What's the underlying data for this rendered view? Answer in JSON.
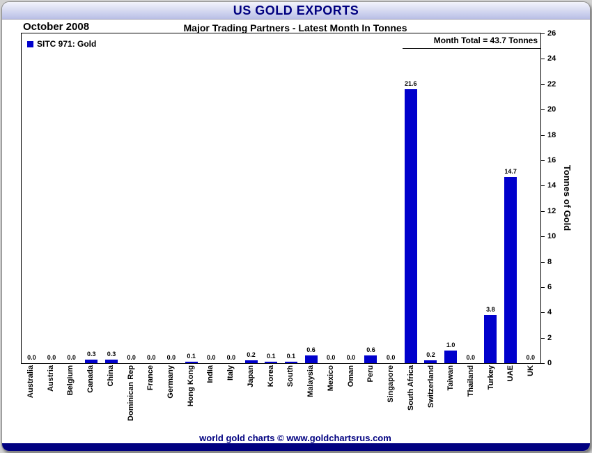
{
  "window": {
    "title": "US GOLD EXPORTS"
  },
  "header": {
    "date": "October 2008",
    "subtitle": "Major Trading Partners - Latest Month In Tonnes"
  },
  "legend": {
    "label": "SITC 971: Gold"
  },
  "month_total": {
    "label": "Month Total = 43.7 Tonnes"
  },
  "footer": {
    "text": "world gold charts © www.goldchartsrus.com"
  },
  "colors": {
    "bar": "#0000CC",
    "accent": "#000080",
    "titlebar_top": "#F3F4FC",
    "titlebar_bottom": "#B9BFE6"
  },
  "chart_data": {
    "type": "bar",
    "title": "US GOLD EXPORTS",
    "subtitle": "Major Trading Partners - Latest Month In Tonnes",
    "legend_entries": [
      "SITC 971: Gold"
    ],
    "legend_position": "top-left",
    "annotations": [
      "Month Total = 43.7 Tonnes"
    ],
    "categories": [
      "Australia",
      "Austria",
      "Belgium",
      "Canada",
      "China",
      "Dominican Rep",
      "France",
      "Germany",
      "Hong Kong",
      "India",
      "Italy",
      "Japan",
      "Korea",
      "South",
      "Malaysia",
      "Mexico",
      "Oman",
      "Peru",
      "Singapore",
      "South Africa",
      "Switzerland",
      "Taiwan",
      "Thailand",
      "Turkey",
      "UAE",
      "UK"
    ],
    "values": [
      0.0,
      0.0,
      0.0,
      0.3,
      0.3,
      0.0,
      0.0,
      0.0,
      0.1,
      0.0,
      0.0,
      0.2,
      0.1,
      0.1,
      0.6,
      0.0,
      0.0,
      0.6,
      0.0,
      21.6,
      0.2,
      1.0,
      0.0,
      3.8,
      14.7,
      0.0
    ],
    "xlabel": "",
    "ylabel": "Tonnes of Gold",
    "ylim": [
      0,
      26
    ],
    "ytick_step": 2,
    "grid": false,
    "bar_color": "#0000CC"
  }
}
